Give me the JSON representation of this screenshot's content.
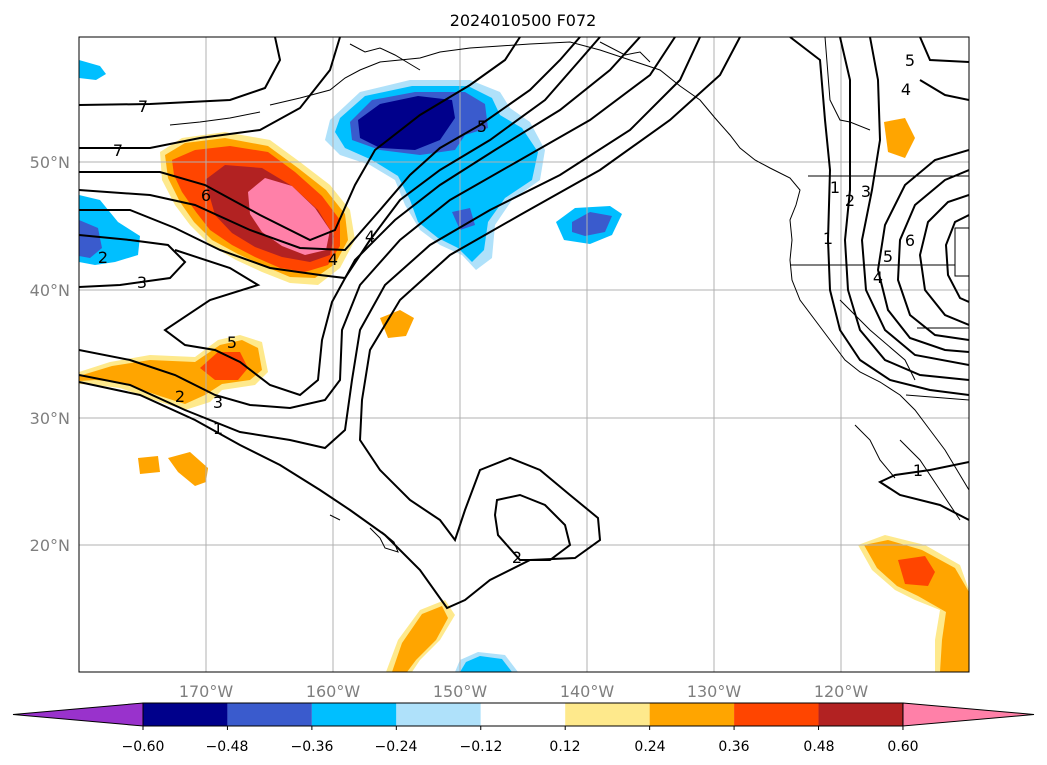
{
  "title": "2024010500 F072",
  "lat_labels": [
    "50°N",
    "40°N",
    "30°N",
    "20°N"
  ],
  "lon_labels": [
    "170°W",
    "160°W",
    "150°W",
    "140°W",
    "130°W",
    "120°W"
  ],
  "colorbar": {
    "ticks": [
      "−0.60",
      "−0.48",
      "−0.36",
      "−0.24",
      "−0.12",
      "0.12",
      "0.24",
      "0.36",
      "0.48",
      "0.60"
    ],
    "colors": [
      "#9932cc",
      "#00008b",
      "#3a5bcd",
      "#00bfff",
      "#afe1fa",
      "#ffffff",
      "#fee98c",
      "#ffa500",
      "#ff4500",
      "#b22222",
      "#ff80a8"
    ]
  },
  "contour_labels": [
    "7",
    "7",
    "6",
    "5",
    "5",
    "4",
    "4",
    "3",
    "3",
    "2",
    "2",
    "2",
    "1",
    "1",
    "1",
    "1",
    "2",
    "3",
    "5",
    "6",
    "4",
    "5",
    "4"
  ]
}
